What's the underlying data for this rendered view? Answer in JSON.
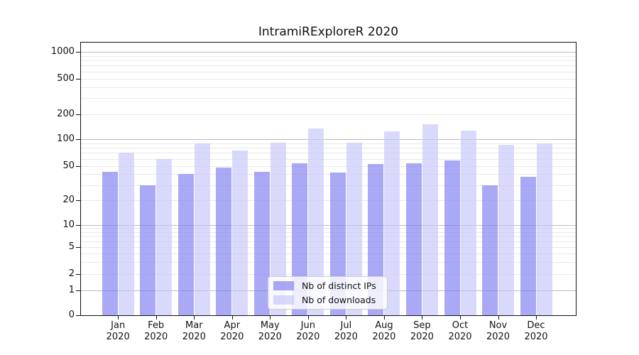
{
  "chart_data": {
    "type": "bar",
    "title": "IntramiRExploreR 2020",
    "categories": [
      "Jan",
      "Feb",
      "Mar",
      "Apr",
      "May",
      "Jun",
      "Jul",
      "Aug",
      "Sep",
      "Oct",
      "Nov",
      "Dec"
    ],
    "category_year": "2020",
    "series": [
      {
        "name": "Nb of distinct IPs",
        "color_hex_on_white": "#a8a8f4",
        "color": "rgba(124,124,240,0.66)",
        "values": [
          43,
          30,
          40,
          48,
          43,
          53,
          42,
          52,
          53,
          58,
          30,
          37
        ]
      },
      {
        "name": "Nb of downloads",
        "color_hex_on_white": "#d9d9f9",
        "color": "rgba(198,198,251,0.66)",
        "values": [
          70,
          60,
          90,
          75,
          92,
          133,
          92,
          123,
          150,
          126,
          87,
          90
        ]
      }
    ],
    "xlabel": "",
    "ylabel": "",
    "yscale": "log-like",
    "ylim": [
      0,
      1000
    ],
    "y_tick_values": [
      0,
      1,
      2,
      5,
      10,
      20,
      50,
      100,
      200,
      500,
      1000
    ],
    "y_tick_labels": [
      "0",
      "1",
      "2",
      "5",
      "10",
      "20",
      "50",
      "100",
      "200",
      "500",
      "1000"
    ],
    "y_major_grid_values": [
      1,
      10,
      100,
      1000
    ],
    "grid": "both (major darker, minor faint)",
    "legend_position": "lower center, inside plot"
  },
  "colors": {
    "major_grid": "#bdbdbd",
    "minor_grid": "#e9e9e9",
    "spine": "#111111",
    "background": "#ffffff",
    "legend_border": "#cccccc"
  }
}
